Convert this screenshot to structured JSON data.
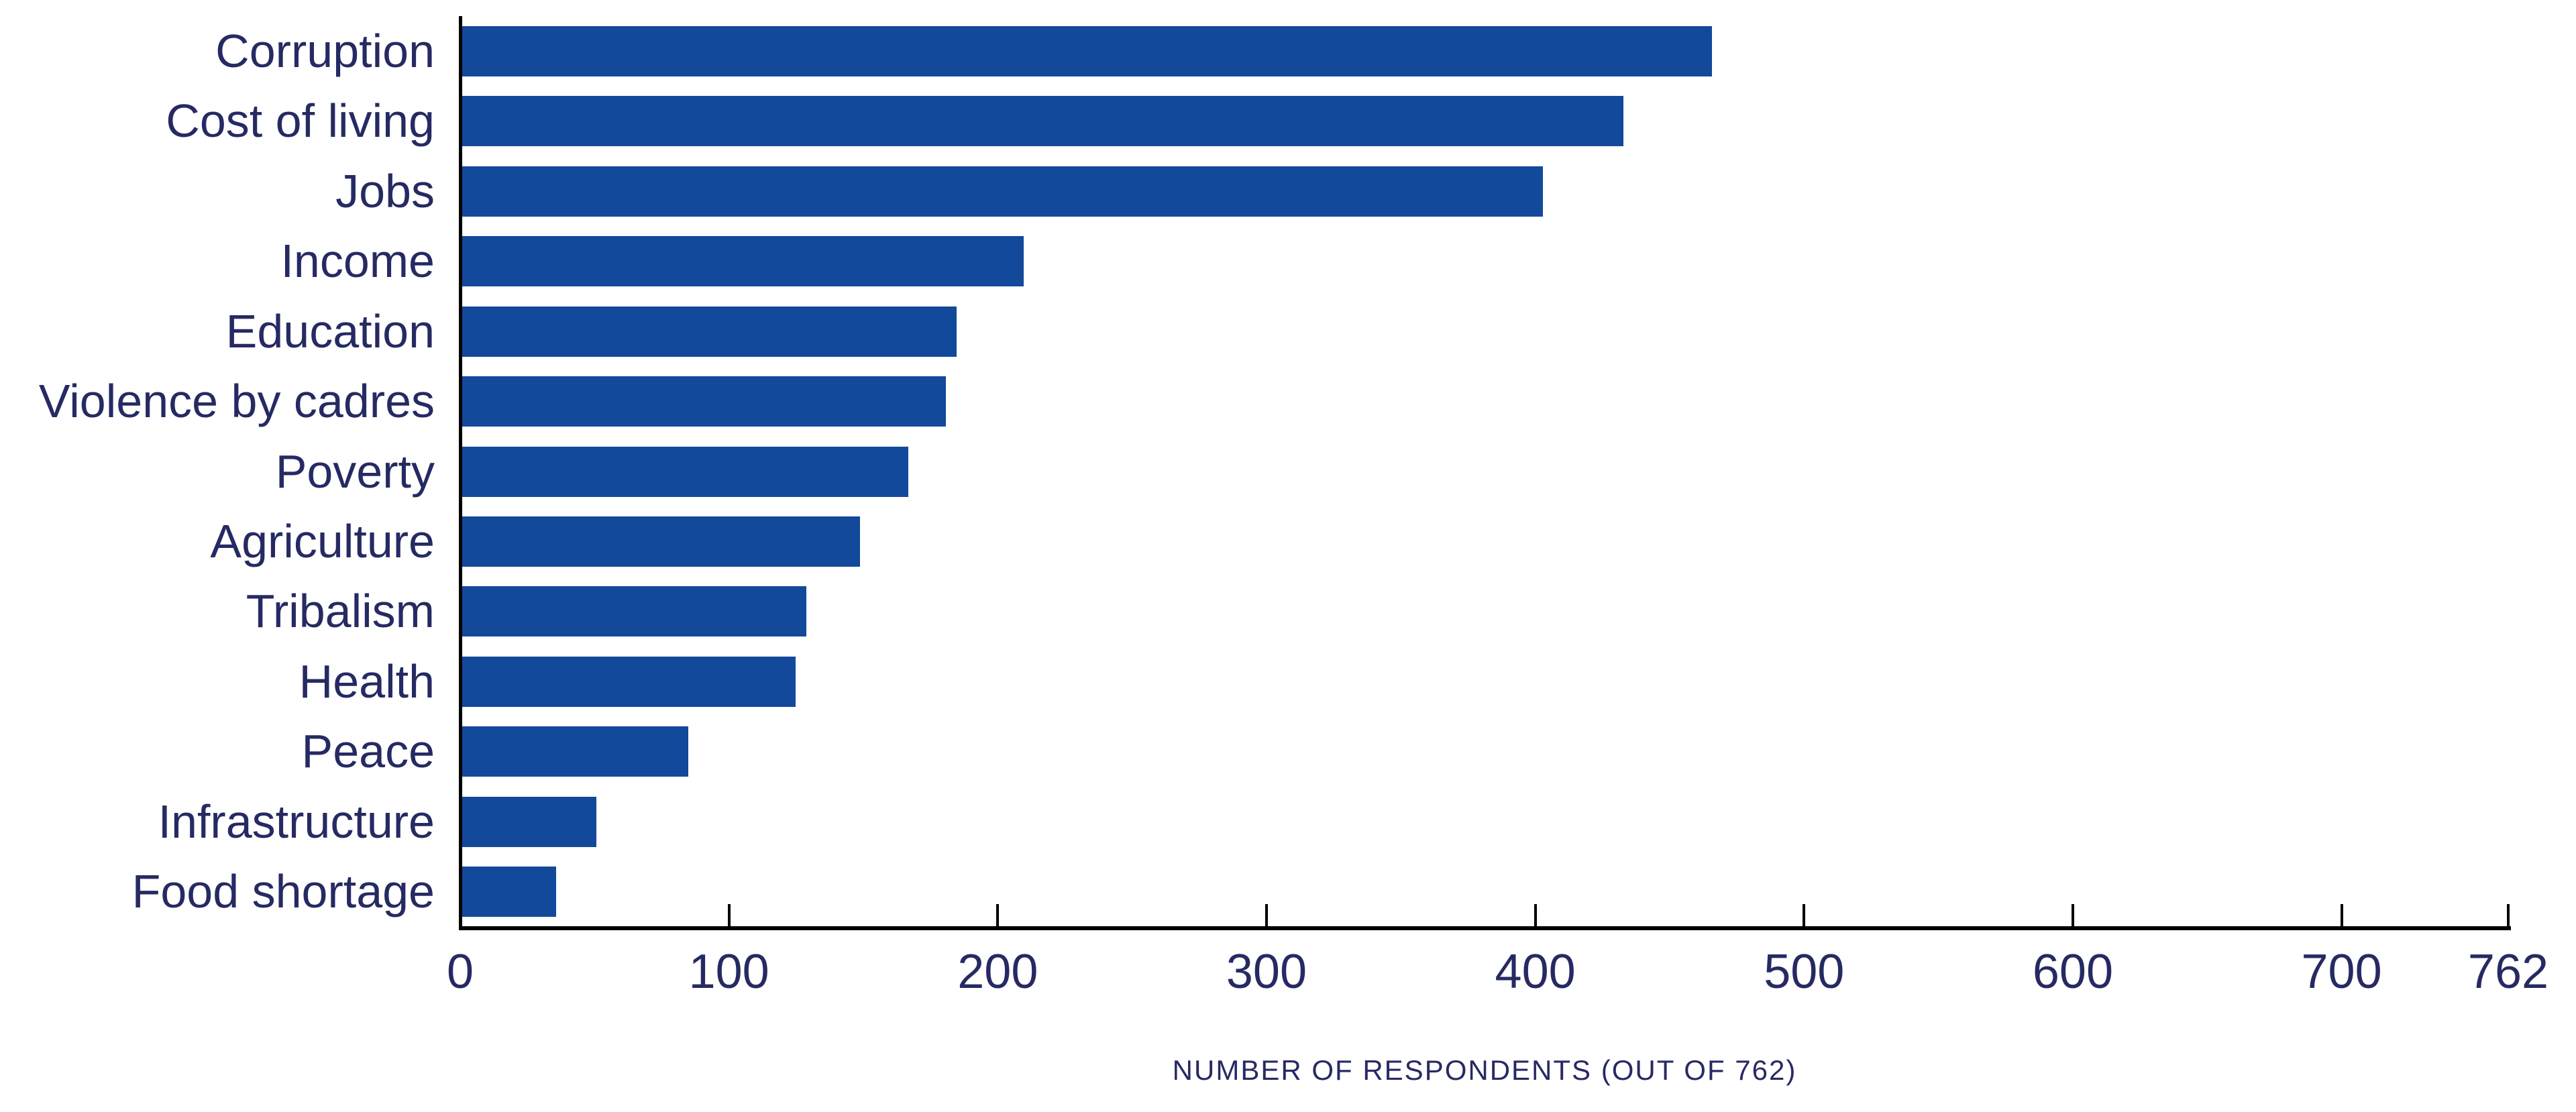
{
  "chart_data": {
    "type": "bar",
    "orientation": "horizontal",
    "categories": [
      "Corruption",
      "Cost of living",
      "Jobs",
      "Income",
      "Education",
      "Violence by cadres",
      "Poverty",
      "Agriculture",
      "Tribalism",
      "Health",
      "Peace",
      "Infrastructure",
      "Food shortage"
    ],
    "values": [
      465,
      432,
      402,
      209,
      184,
      180,
      166,
      148,
      128,
      124,
      84,
      50,
      35
    ],
    "title": "",
    "xlabel": "NUMBER OF RESPONDENTS (OUT OF 762)",
    "ylabel": "",
    "x_ticks": [
      0,
      100,
      200,
      300,
      400,
      500,
      600,
      700,
      762
    ],
    "xlim": [
      0,
      762
    ],
    "grid": false,
    "legend": "none",
    "bar_color": "#12499B",
    "text_color": "#262A63",
    "axis_color": "#000000"
  }
}
